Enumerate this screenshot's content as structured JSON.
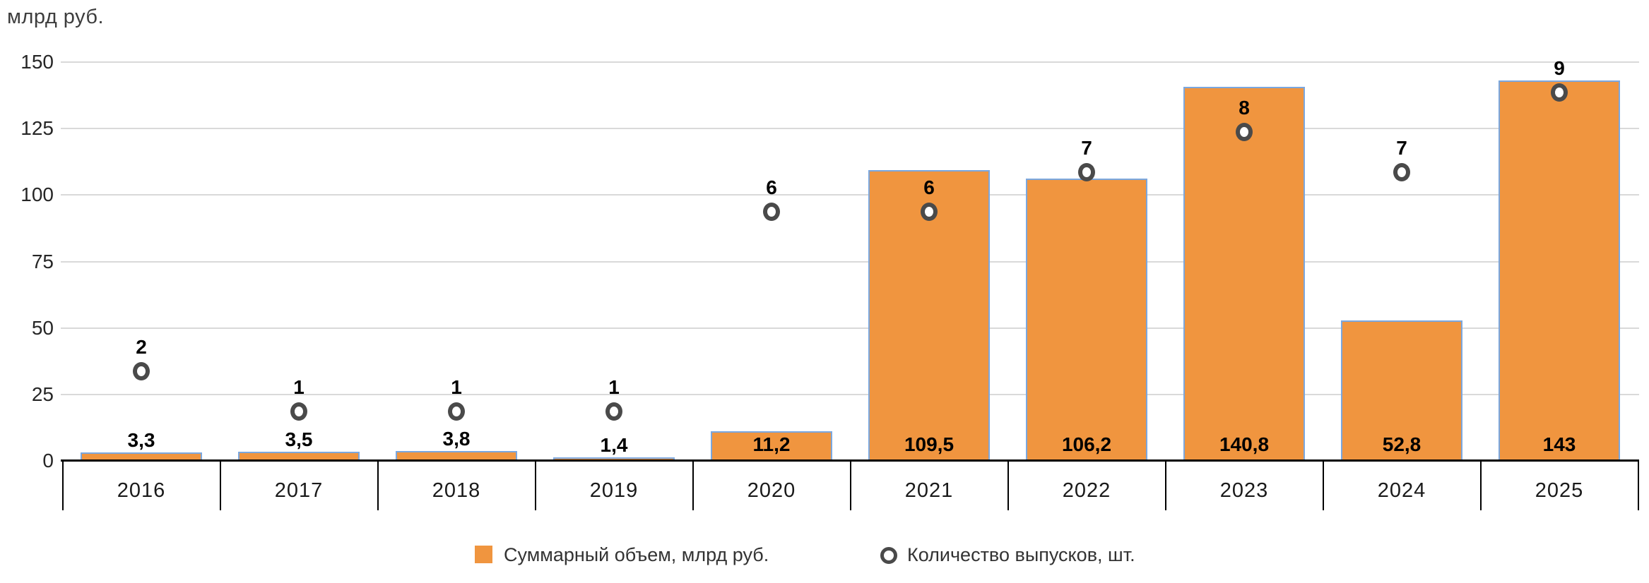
{
  "axis": {
    "y_title": "млрд руб.",
    "y_tick_labels": [
      "0",
      "25",
      "50",
      "75",
      "100",
      "125",
      "150"
    ],
    "y_tick_values": [
      0,
      25,
      50,
      75,
      100,
      125,
      150
    ]
  },
  "chart_data": {
    "type": "bar",
    "title": "",
    "ylabel": "млрд руб.",
    "xlabel": "",
    "categories": [
      "2016",
      "2017",
      "2018",
      "2019",
      "2020",
      "2021",
      "2022",
      "2023",
      "2024",
      "2025"
    ],
    "series": [
      {
        "name": "Суммарный объем, млрд руб.",
        "type": "bar",
        "values": [
          3.3,
          3.5,
          3.8,
          1.4,
          11.2,
          109.5,
          106.2,
          140.8,
          52.8,
          143
        ],
        "value_labels": [
          "3,3",
          "3,5",
          "3,8",
          "1,4",
          "11,2",
          "109,5",
          "106,2",
          "140,8",
          "52,8",
          "143"
        ],
        "fill_color": "#F0953F",
        "border_color": "#7BA7DE"
      },
      {
        "name": "Количество выпусков, шт.",
        "type": "scatter",
        "values": [
          2,
          1,
          1,
          1,
          6,
          6,
          7,
          8,
          7,
          9
        ],
        "marker": "open-circle",
        "marker_color": "#4A4A4A"
      }
    ],
    "ylim": [
      0,
      150
    ],
    "grid": true,
    "legend_position": "bottom",
    "secondary_scale": {
      "units_per_count": 15,
      "offset_units": 3.7
    }
  },
  "colors": {
    "bar_fill": "#F0953F",
    "bar_border": "#7BA7DE",
    "marker_ring": "#4A4A4A",
    "gridline": "#D9D9D9",
    "axis_line": "#000000"
  }
}
